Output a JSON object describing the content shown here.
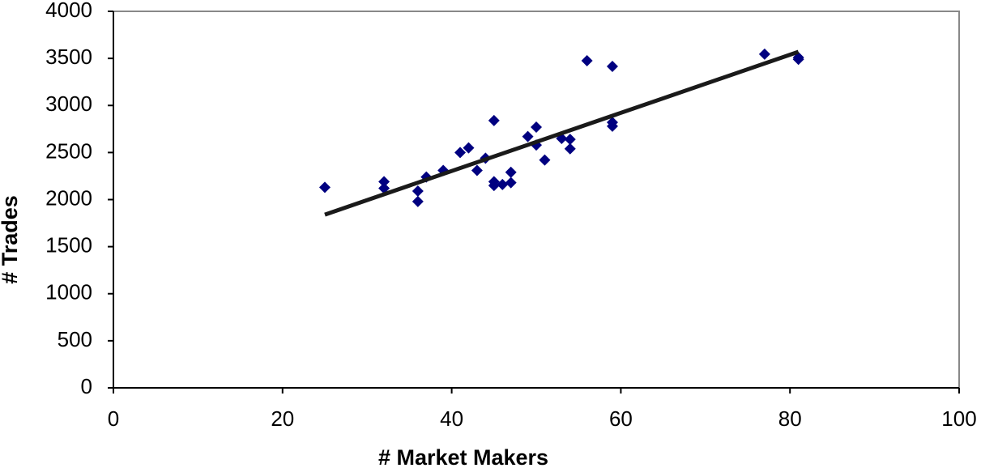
{
  "chart_data": {
    "type": "scatter",
    "xlabel": "# Market Makers",
    "ylabel": "# Trades",
    "series": [
      {
        "color": "#000080",
        "x": [
          25,
          32,
          32,
          36,
          36,
          37,
          39,
          41,
          42,
          43,
          44,
          45,
          45,
          45,
          46,
          47,
          47,
          49,
          50,
          50,
          51,
          53,
          54,
          54,
          56,
          59,
          59,
          59,
          77,
          81,
          81
        ],
        "values": [
          2130,
          2190,
          2120,
          2090,
          1980,
          2240,
          2310,
          2500,
          2550,
          2310,
          2440,
          2840,
          2190,
          2150,
          2160,
          2290,
          2180,
          2670,
          2770,
          2580,
          2420,
          2650,
          2640,
          2540,
          3475,
          3415,
          2820,
          2780,
          3545,
          3510,
          3490
        ]
      }
    ],
    "trendline": {
      "color": "#1a1a1a",
      "x": [
        25,
        81
      ],
      "values": [
        1840,
        3570
      ]
    },
    "xlim": [
      0,
      100
    ],
    "xticks": [
      0,
      20,
      40,
      60,
      80,
      100
    ],
    "ylim": [
      0,
      4000
    ],
    "yticks": [
      0,
      500,
      1000,
      1500,
      2000,
      2500,
      3000,
      3500,
      4000
    ],
    "grid": false
  }
}
